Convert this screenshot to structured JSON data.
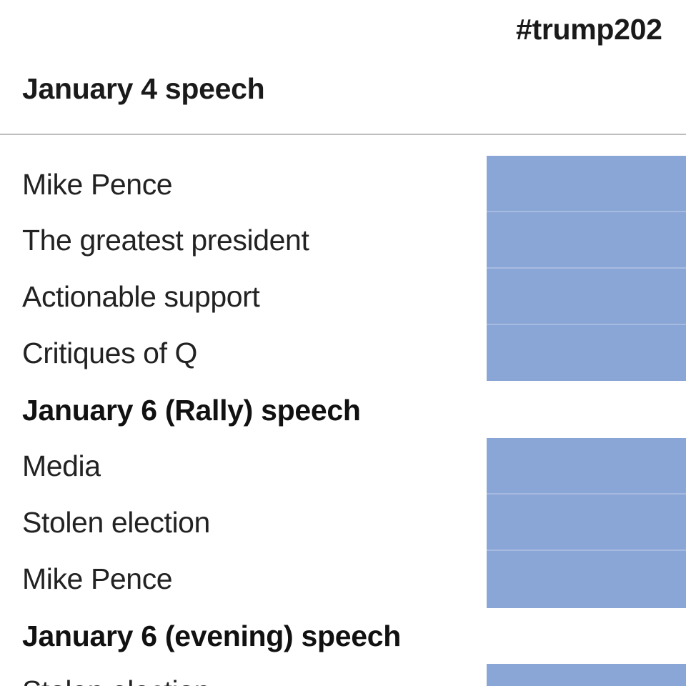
{
  "chart_data": {
    "type": "table",
    "column_header": "#trump202",
    "sections": [
      {
        "heading": "January 4 speech",
        "rows": [
          "Mike Pence",
          "The greatest president",
          "Actionable support",
          "Critiques of Q"
        ]
      },
      {
        "heading": "January 6 (Rally) speech",
        "rows": [
          "Media",
          "Stolen election",
          "Mike Pence"
        ]
      },
      {
        "heading": "January 6 (evening) speech",
        "rows": [
          "Stolen election"
        ]
      }
    ],
    "cell_color": "#8aa6d6",
    "divider_color": "#bdbdbd"
  }
}
